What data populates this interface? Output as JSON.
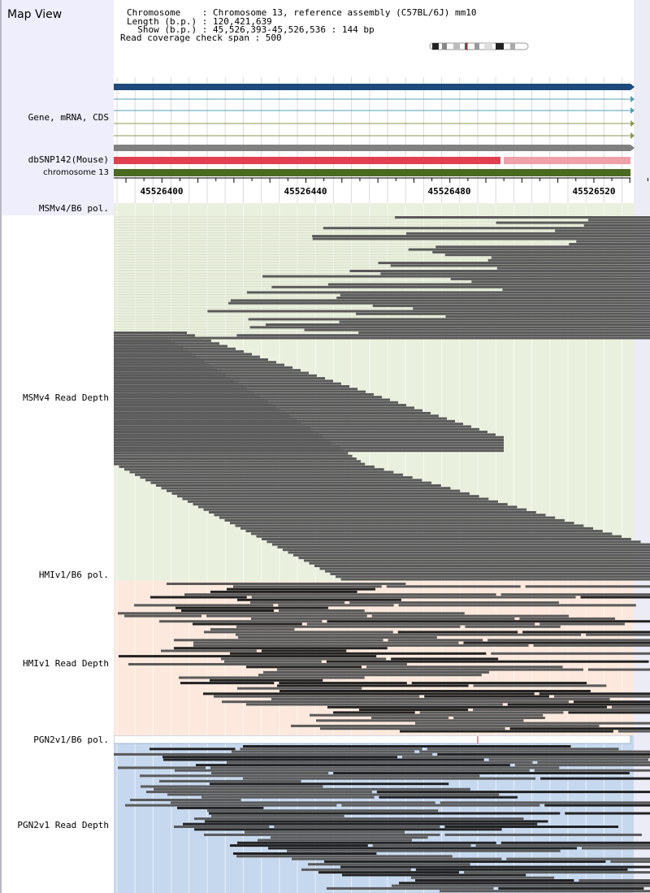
{
  "map_view": {
    "title": "Map View"
  },
  "info": {
    "chromosome_line": "Chromosome    : Chromosome 13, reference assembly (C57BL/6J) mm10",
    "length_line": "Length (b.p.) : 120,421,639",
    "show_line": "  Show (b.p.) : 45,526,393-45,526,536 : 144 bp",
    "coverage_line": "Read coverage check span : 500"
  },
  "tracks": {
    "gene_label": "Gene, mRNA, CDS",
    "dbsnp_label": "dbSNP142(Mouse)",
    "chromosome_label": "chromosome 13"
  },
  "scale": {
    "ticks": [
      "45526400",
      "45526440",
      "45526480",
      "45526520"
    ]
  },
  "panels": [
    {
      "pol_label": "MSMv4/B6 pol.",
      "depth_label": "MSMv4 Read Depth",
      "bg": "#eaf0de"
    },
    {
      "pol_label": "HMIv1/B6 pol.",
      "depth_label": "HMIv1 Read Depth",
      "bg": "#fce8dc"
    },
    {
      "pol_label": "PGN2v1/B6 pol.",
      "depth_label": "PGN2v1 Read Depth",
      "bg": "#c6d8ee"
    }
  ],
  "colors": {
    "gene_main": "#1d4a7a",
    "mrna": "#4fa0b0",
    "cds": "#8a9a50",
    "track_gray": "#808080",
    "snp_red": "#e04050",
    "snp_pink": "#f0a0a8",
    "chrom_green": "#4a6a20",
    "read": "#5a5a5a",
    "read_dark": "#222222"
  }
}
